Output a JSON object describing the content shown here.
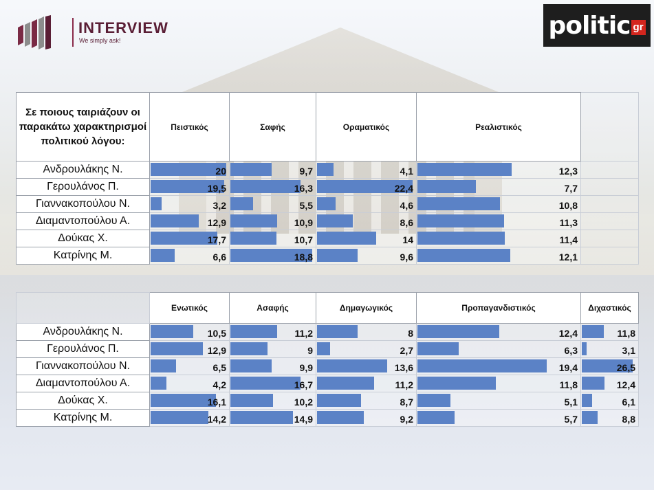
{
  "logo": {
    "interview_title": "INTERVIEW",
    "interview_tagline": "We simply ask!",
    "politic_word": "politic",
    "politic_suffix": "gr"
  },
  "colors": {
    "bar": "#5b82c6",
    "brand": "#5a1e35",
    "politic_red": "#d4261e"
  },
  "chart_data": [
    {
      "type": "table",
      "question": "Σε ποιους ταιριάζουν οι παρακάτω χαρακτηρισμοί πολιτικού λόγου:",
      "columns": [
        {
          "label": "Πειστικός",
          "max": 20.5
        },
        {
          "label": "Σαφής",
          "max": 19.5
        },
        {
          "label": "Οραματικός",
          "max": 23
        },
        {
          "label": "Ρεαλιστικός",
          "max": 21
        }
      ],
      "rows": [
        {
          "name": "Ανδρουλάκης Ν.",
          "values": [
            "20",
            "9,7",
            "4,1",
            "12,3"
          ]
        },
        {
          "name": "Γερουλάνος Π.",
          "values": [
            "19,5",
            "16,3",
            "22,4",
            "7,7"
          ]
        },
        {
          "name": "Γιαννακοπούλου Ν.",
          "values": [
            "3,2",
            "5,5",
            "4,6",
            "10,8"
          ]
        },
        {
          "name": "Διαμαντοπούλου Α.",
          "values": [
            "12,9",
            "10,9",
            "8,6",
            "11,3"
          ]
        },
        {
          "name": "Δούκας Χ.",
          "values": [
            "17,7",
            "10,7",
            "14",
            "11,4"
          ]
        },
        {
          "name": "Κατρίνης Μ.",
          "values": [
            "6,6",
            "18,8",
            "9,6",
            "12,1"
          ]
        }
      ]
    },
    {
      "type": "table",
      "question": "",
      "columns": [
        {
          "label": "Ενωτικός",
          "max": 19
        },
        {
          "label": "Ασαφής",
          "max": 20
        },
        {
          "label": "Δημαγωγικός",
          "max": 19
        },
        {
          "label": "Προπαγανδιστικός",
          "max": 24.3
        },
        {
          "label": "Διχαστικός",
          "max": 29
        }
      ],
      "rows": [
        {
          "name": "Ανδρουλάκης Ν.",
          "values": [
            "10,5",
            "11,2",
            "8",
            "12,4",
            "11,8"
          ]
        },
        {
          "name": "Γερουλάνος Π.",
          "values": [
            "12,9",
            "9",
            "2,7",
            "6,3",
            "3,1"
          ]
        },
        {
          "name": "Γιαννακοπούλου Ν.",
          "values": [
            "6,5",
            "9,9",
            "13,6",
            "19,4",
            "26,5"
          ]
        },
        {
          "name": "Διαμαντοπούλου Α.",
          "values": [
            "4,2",
            "16,7",
            "11,2",
            "11,8",
            "12,4"
          ]
        },
        {
          "name": "Δούκας Χ.",
          "values": [
            "16,1",
            "10,2",
            "8,7",
            "5,1",
            "6,1"
          ]
        },
        {
          "name": "Κατρίνης Μ.",
          "values": [
            "14,2",
            "14,9",
            "9,2",
            "5,7",
            "8,8"
          ]
        }
      ]
    }
  ]
}
